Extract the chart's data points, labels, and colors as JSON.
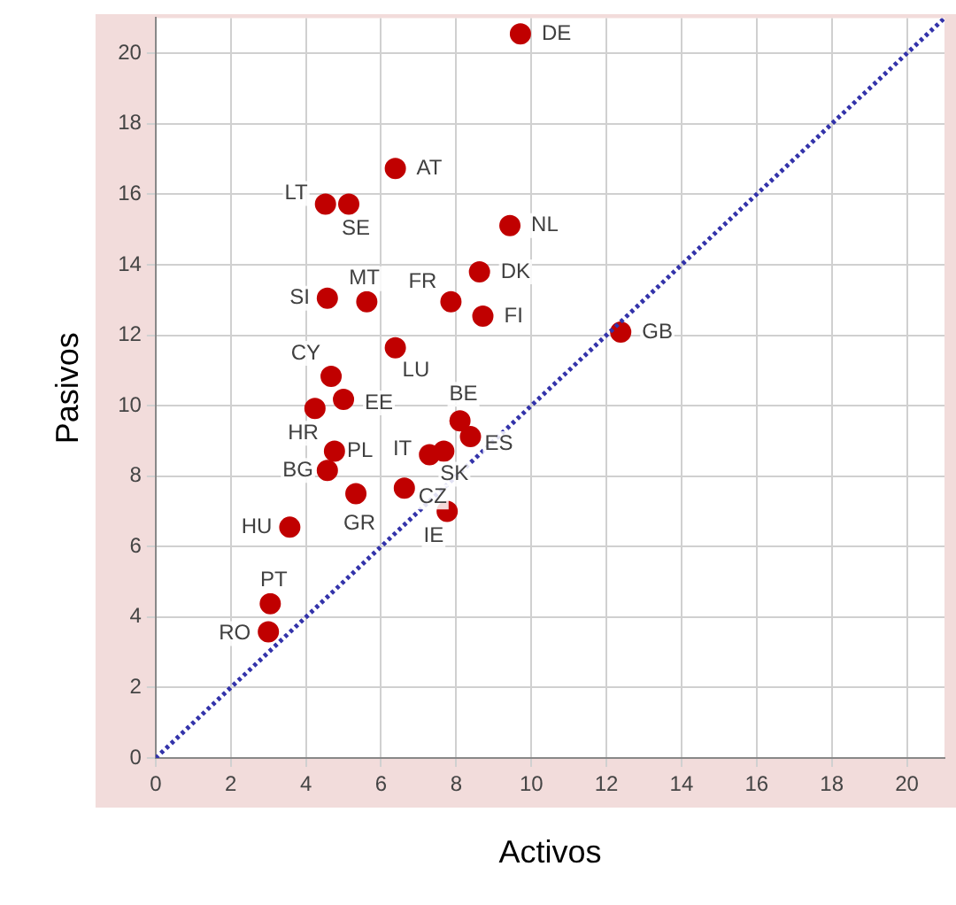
{
  "chart_data": {
    "type": "scatter",
    "xlabel": "Activos",
    "ylabel": "Pasivos",
    "x": [
      9.71,
      6.38,
      4.52,
      5.14,
      9.43,
      8.62,
      4.57,
      5.62,
      7.86,
      8.71,
      12.38,
      6.38,
      4.67,
      5.0,
      4.24,
      8.1,
      8.38,
      7.29,
      7.67,
      4.76,
      4.57,
      5.33,
      6.62,
      7.76,
      3.57,
      3.05,
      3.0
    ],
    "series": [
      {
        "type": "scatter",
        "color": "#c00000",
        "marker": "circle",
        "values": [
          20.55,
          16.73,
          15.72,
          15.72,
          15.11,
          13.8,
          13.05,
          12.95,
          12.95,
          12.54,
          12.09,
          11.64,
          10.83,
          10.18,
          9.92,
          9.57,
          9.12,
          8.61,
          8.71,
          8.71,
          8.16,
          7.5,
          7.66,
          7.0,
          6.55,
          4.38,
          3.58
        ]
      },
      {
        "type": "line",
        "color": "#3333aa",
        "marker": "none",
        "line_style": "dotted",
        "x": [
          0,
          21
        ],
        "values": [
          0,
          21
        ]
      }
    ],
    "annotations": [
      {
        "text": "DE",
        "x": 9.71,
        "y": 20.55
      },
      {
        "text": "AT",
        "x": 6.38,
        "y": 16.73
      },
      {
        "text": "LT",
        "x": 4.52,
        "y": 15.72
      },
      {
        "text": "SE",
        "x": 5.14,
        "y": 15.72
      },
      {
        "text": "NL",
        "x": 9.43,
        "y": 15.11
      },
      {
        "text": "DK",
        "x": 8.62,
        "y": 13.8
      },
      {
        "text": "SI",
        "x": 4.57,
        "y": 13.05
      },
      {
        "text": "MT",
        "x": 5.62,
        "y": 12.95
      },
      {
        "text": "FR",
        "x": 7.86,
        "y": 12.95
      },
      {
        "text": "FI",
        "x": 8.71,
        "y": 12.54
      },
      {
        "text": "GB",
        "x": 12.38,
        "y": 12.09
      },
      {
        "text": "LU",
        "x": 6.38,
        "y": 11.64
      },
      {
        "text": "CY",
        "x": 4.67,
        "y": 10.83
      },
      {
        "text": "EE",
        "x": 5.0,
        "y": 10.18
      },
      {
        "text": "HR",
        "x": 4.24,
        "y": 9.92
      },
      {
        "text": "BE",
        "x": 8.1,
        "y": 9.57
      },
      {
        "text": "ES",
        "x": 8.38,
        "y": 9.12
      },
      {
        "text": "IT",
        "x": 7.29,
        "y": 8.61
      },
      {
        "text": "SK",
        "x": 7.67,
        "y": 8.71
      },
      {
        "text": "PL",
        "x": 4.76,
        "y": 8.71
      },
      {
        "text": "BG",
        "x": 4.57,
        "y": 8.16
      },
      {
        "text": "GR",
        "x": 5.33,
        "y": 7.5
      },
      {
        "text": "CZ",
        "x": 6.62,
        "y": 7.66
      },
      {
        "text": "IE",
        "x": 7.76,
        "y": 7.0
      },
      {
        "text": "HU",
        "x": 3.57,
        "y": 6.55
      },
      {
        "text": "PT",
        "x": 3.05,
        "y": 4.38
      },
      {
        "text": "RO",
        "x": 3.0,
        "y": 3.58
      }
    ],
    "xlim": [
      0,
      21
    ],
    "ylim": [
      0,
      21
    ],
    "xticks": [
      0,
      2,
      4,
      6,
      8,
      10,
      12,
      14,
      16,
      18,
      20
    ],
    "yticks": [
      0,
      2,
      4,
      6,
      8,
      10,
      12,
      14,
      16,
      18,
      20
    ],
    "grid": true
  }
}
